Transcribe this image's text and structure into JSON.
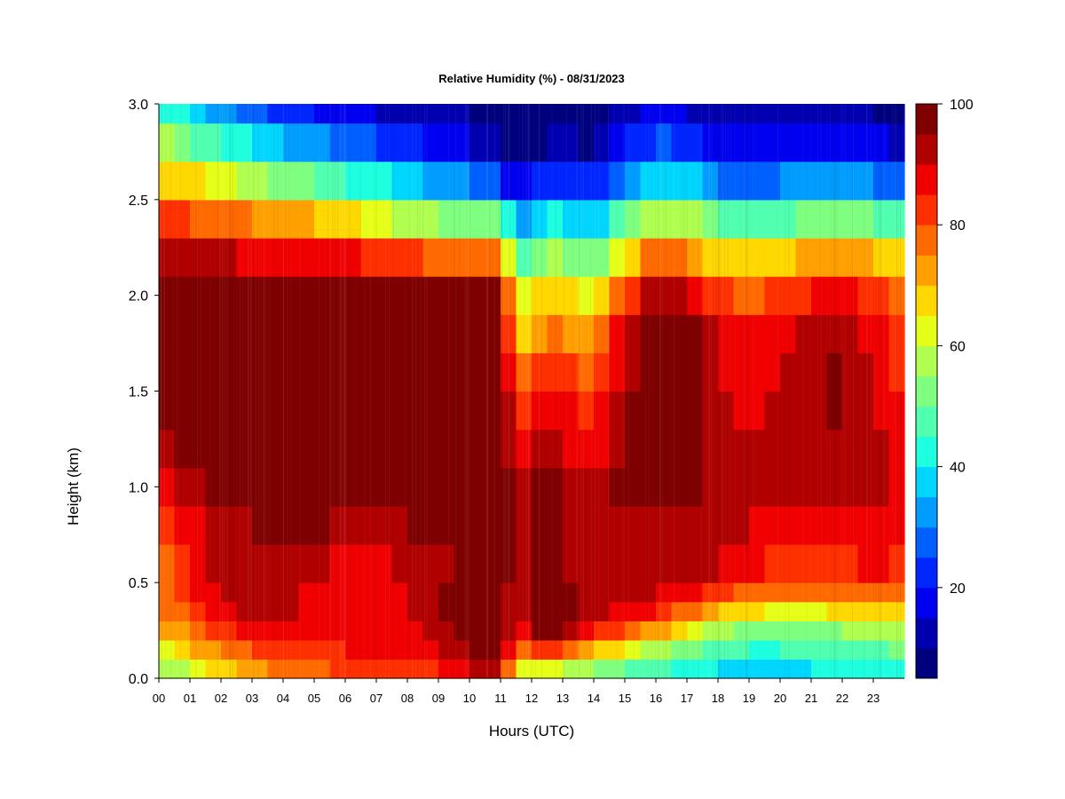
{
  "chart_data": {
    "type": "heatmap",
    "title": "Relative Humidity (%) - 08/31/2023",
    "xlabel": "Hours (UTC)",
    "ylabel": "Height (km)",
    "x_ticks": [
      "00",
      "01",
      "02",
      "03",
      "04",
      "05",
      "06",
      "07",
      "08",
      "09",
      "10",
      "11",
      "12",
      "13",
      "14",
      "15",
      "16",
      "17",
      "18",
      "19",
      "20",
      "21",
      "22",
      "23"
    ],
    "x_tick_values": [
      0,
      1,
      2,
      3,
      4,
      5,
      6,
      7,
      8,
      9,
      10,
      11,
      12,
      13,
      14,
      15,
      16,
      17,
      18,
      19,
      20,
      21,
      22,
      23
    ],
    "xlim": [
      0,
      24
    ],
    "y_ticks": [
      "0.0",
      "0.5",
      "1.0",
      "1.5",
      "2.0",
      "2.5",
      "3.0"
    ],
    "y_tick_values": [
      0,
      0.5,
      1.0,
      1.5,
      2.0,
      2.5,
      3.0
    ],
    "ylim": [
      0,
      3.0
    ],
    "colorbar": {
      "ticks": [
        "20",
        "40",
        "60",
        "80",
        "100"
      ],
      "tick_values": [
        20,
        40,
        60,
        80,
        100
      ],
      "range": [
        5,
        100
      ],
      "levels": [
        "#00007f",
        "#0000b0",
        "#0000f0",
        "#0026ff",
        "#0060ff",
        "#009cff",
        "#00d6ff",
        "#1effe0",
        "#50ffb0",
        "#7fff7f",
        "#b0ff50",
        "#e6ff18",
        "#ffd800",
        "#ffa000",
        "#ff6a00",
        "#ff3000",
        "#f00000",
        "#b00000",
        "#7f0000"
      ]
    },
    "hours": [
      0,
      0.5,
      1,
      1.5,
      2,
      2.5,
      3,
      3.5,
      4,
      4.5,
      5,
      5.5,
      6,
      6.5,
      7,
      7.5,
      8,
      8.5,
      9,
      9.5,
      10,
      10.5,
      11,
      11.5,
      12,
      12.5,
      13,
      13.5,
      14,
      14.5,
      15,
      15.5,
      16,
      16.5,
      17,
      17.5,
      18,
      18.5,
      19,
      19.5,
      20,
      20.5,
      21,
      21.5,
      22,
      22.5,
      23,
      23.5,
      24
    ],
    "heights_km": [
      0.0,
      0.1,
      0.2,
      0.3,
      0.4,
      0.5,
      0.7,
      0.9,
      1.1,
      1.3,
      1.5,
      1.7,
      1.9,
      2.1,
      2.3,
      2.5,
      2.7,
      2.9,
      3.0
    ],
    "rh_percent": [
      [
        52,
        50,
        54,
        58,
        62,
        64,
        66,
        70,
        72,
        74,
        76,
        76,
        78,
        78,
        80,
        80,
        80,
        82,
        82,
        84,
        88,
        92,
        90,
        60,
        56,
        54,
        52,
        50,
        48,
        46,
        44,
        42,
        40,
        39,
        38,
        37,
        36,
        36,
        35,
        35,
        35,
        36,
        36,
        37,
        38,
        38,
        39,
        40,
        40
      ],
      [
        60,
        60,
        64,
        68,
        72,
        74,
        76,
        78,
        80,
        80,
        82,
        82,
        84,
        84,
        84,
        86,
        86,
        86,
        88,
        90,
        95,
        98,
        96,
        70,
        70,
        72,
        68,
        66,
        62,
        58,
        56,
        54,
        52,
        50,
        48,
        46,
        44,
        43,
        42,
        42,
        42,
        43,
        44,
        44,
        45,
        46,
        46,
        47,
        48
      ],
      [
        66,
        68,
        72,
        76,
        80,
        82,
        84,
        86,
        86,
        86,
        86,
        86,
        86,
        86,
        86,
        86,
        88,
        88,
        90,
        94,
        98,
        100,
        100,
        82,
        92,
        96,
        88,
        86,
        80,
        76,
        72,
        68,
        64,
        60,
        56,
        52,
        50,
        48,
        47,
        46,
        47,
        48,
        49,
        50,
        50,
        51,
        52,
        53,
        54
      ],
      [
        72,
        74,
        78,
        82,
        86,
        88,
        90,
        90,
        90,
        88,
        88,
        88,
        88,
        86,
        86,
        88,
        90,
        90,
        92,
        96,
        100,
        100,
        100,
        86,
        98,
        100,
        96,
        94,
        92,
        88,
        86,
        84,
        80,
        76,
        72,
        68,
        64,
        62,
        60,
        58,
        58,
        58,
        58,
        58,
        60,
        60,
        62,
        62,
        64
      ],
      [
        76,
        78,
        82,
        86,
        90,
        92,
        92,
        92,
        92,
        90,
        90,
        90,
        90,
        88,
        88,
        88,
        90,
        92,
        94,
        98,
        100,
        100,
        100,
        88,
        100,
        100,
        98,
        96,
        94,
        92,
        92,
        90,
        88,
        86,
        84,
        82,
        78,
        74,
        72,
        70,
        70,
        70,
        70,
        70,
        72,
        72,
        74,
        74,
        76
      ],
      [
        76,
        78,
        84,
        88,
        92,
        92,
        92,
        90,
        90,
        88,
        88,
        88,
        88,
        86,
        86,
        88,
        90,
        90,
        92,
        96,
        100,
        100,
        100,
        90,
        96,
        100,
        96,
        94,
        92,
        92,
        92,
        92,
        92,
        90,
        90,
        90,
        88,
        86,
        84,
        82,
        80,
        80,
        80,
        80,
        82,
        82,
        84,
        84,
        82
      ],
      [
        80,
        82,
        86,
        90,
        92,
        92,
        92,
        92,
        92,
        92,
        92,
        92,
        90,
        90,
        90,
        90,
        92,
        92,
        94,
        96,
        98,
        100,
        100,
        90,
        92,
        96,
        92,
        92,
        90,
        92,
        92,
        92,
        94,
        92,
        92,
        92,
        92,
        90,
        88,
        86,
        86,
        86,
        86,
        86,
        86,
        86,
        88,
        88,
        84
      ],
      [
        86,
        88,
        90,
        92,
        94,
        96,
        98,
        98,
        98,
        98,
        98,
        98,
        98,
        96,
        96,
        98,
        98,
        98,
        98,
        100,
        100,
        100,
        100,
        90,
        96,
        100,
        96,
        94,
        92,
        94,
        96,
        96,
        96,
        96,
        96,
        94,
        94,
        92,
        92,
        90,
        90,
        92,
        92,
        92,
        92,
        92,
        92,
        90,
        88
      ],
      [
        90,
        92,
        94,
        96,
        98,
        100,
        100,
        100,
        100,
        100,
        100,
        100,
        100,
        100,
        100,
        100,
        100,
        100,
        100,
        100,
        100,
        100,
        100,
        90,
        92,
        96,
        92,
        92,
        90,
        94,
        96,
        98,
        98,
        98,
        98,
        96,
        94,
        92,
        92,
        92,
        92,
        92,
        94,
        94,
        94,
        94,
        92,
        90,
        88
      ],
      [
        96,
        96,
        98,
        100,
        100,
        100,
        100,
        100,
        100,
        100,
        100,
        100,
        100,
        100,
        100,
        100,
        100,
        100,
        100,
        100,
        100,
        100,
        100,
        84,
        86,
        90,
        88,
        86,
        84,
        90,
        94,
        98,
        100,
        100,
        100,
        96,
        92,
        90,
        90,
        90,
        92,
        92,
        94,
        94,
        94,
        92,
        90,
        88,
        86
      ],
      [
        100,
        100,
        100,
        100,
        100,
        100,
        100,
        100,
        100,
        100,
        100,
        100,
        100,
        100,
        100,
        100,
        100,
        100,
        100,
        100,
        100,
        100,
        100,
        76,
        80,
        86,
        84,
        82,
        80,
        88,
        92,
        96,
        100,
        100,
        100,
        96,
        90,
        88,
        88,
        88,
        90,
        92,
        94,
        96,
        96,
        94,
        90,
        86,
        84
      ],
      [
        100,
        100,
        100,
        100,
        100,
        100,
        100,
        100,
        100,
        100,
        100,
        100,
        100,
        100,
        100,
        100,
        100,
        100,
        100,
        100,
        100,
        100,
        100,
        70,
        74,
        80,
        78,
        76,
        74,
        84,
        90,
        96,
        100,
        100,
        100,
        94,
        88,
        86,
        86,
        86,
        88,
        90,
        92,
        94,
        94,
        92,
        88,
        84,
        82
      ],
      [
        100,
        100,
        100,
        100,
        100,
        100,
        100,
        100,
        100,
        100,
        100,
        100,
        100,
        100,
        100,
        100,
        100,
        100,
        100,
        100,
        100,
        100,
        100,
        64,
        68,
        76,
        72,
        70,
        68,
        80,
        88,
        94,
        98,
        100,
        98,
        92,
        86,
        84,
        84,
        84,
        86,
        88,
        90,
        92,
        92,
        90,
        86,
        82,
        80
      ],
      [
        100,
        100,
        100,
        98,
        96,
        96,
        96,
        96,
        96,
        96,
        96,
        94,
        94,
        94,
        94,
        92,
        92,
        92,
        90,
        90,
        90,
        90,
        92,
        56,
        58,
        66,
        62,
        60,
        56,
        66,
        74,
        82,
        86,
        88,
        86,
        80,
        76,
        74,
        74,
        74,
        76,
        78,
        80,
        82,
        82,
        80,
        78,
        76,
        74
      ],
      [
        86,
        86,
        86,
        86,
        84,
        84,
        82,
        82,
        82,
        82,
        80,
        80,
        78,
        76,
        74,
        72,
        70,
        68,
        66,
        64,
        64,
        64,
        70,
        40,
        44,
        50,
        48,
        46,
        42,
        50,
        56,
        64,
        68,
        70,
        68,
        62,
        58,
        56,
        56,
        56,
        58,
        60,
        62,
        64,
        64,
        62,
        60,
        58,
        56
      ],
      [
        76,
        76,
        74,
        72,
        70,
        68,
        66,
        64,
        62,
        60,
        58,
        56,
        54,
        52,
        50,
        48,
        46,
        44,
        42,
        40,
        38,
        36,
        34,
        22,
        28,
        34,
        32,
        30,
        28,
        34,
        40,
        46,
        48,
        50,
        48,
        42,
        38,
        36,
        36,
        36,
        38,
        40,
        42,
        44,
        44,
        42,
        40,
        38,
        36
      ],
      [
        64,
        62,
        60,
        56,
        52,
        50,
        48,
        46,
        44,
        42,
        40,
        38,
        36,
        34,
        32,
        30,
        28,
        26,
        24,
        22,
        20,
        18,
        16,
        6,
        10,
        14,
        12,
        12,
        10,
        16,
        22,
        28,
        30,
        30,
        28,
        24,
        20,
        18,
        18,
        18,
        20,
        22,
        24,
        24,
        24,
        22,
        20,
        18,
        16
      ],
      [
        48,
        46,
        42,
        38,
        34,
        32,
        30,
        28,
        26,
        24,
        22,
        20,
        18,
        18,
        16,
        16,
        14,
        14,
        12,
        12,
        10,
        10,
        8,
        4,
        6,
        8,
        8,
        8,
        6,
        10,
        14,
        18,
        20,
        20,
        18,
        16,
        14,
        12,
        12,
        12,
        12,
        14,
        14,
        14,
        14,
        12,
        12,
        10,
        10
      ],
      [
        40,
        38,
        34,
        30,
        28,
        26,
        24,
        22,
        20,
        18,
        16,
        16,
        14,
        14,
        12,
        12,
        10,
        10,
        10,
        10,
        8,
        8,
        6,
        4,
        5,
        6,
        6,
        6,
        5,
        8,
        10,
        12,
        14,
        14,
        12,
        10,
        10,
        8,
        8,
        8,
        8,
        10,
        10,
        10,
        10,
        10,
        8,
        8,
        8
      ]
    ]
  }
}
